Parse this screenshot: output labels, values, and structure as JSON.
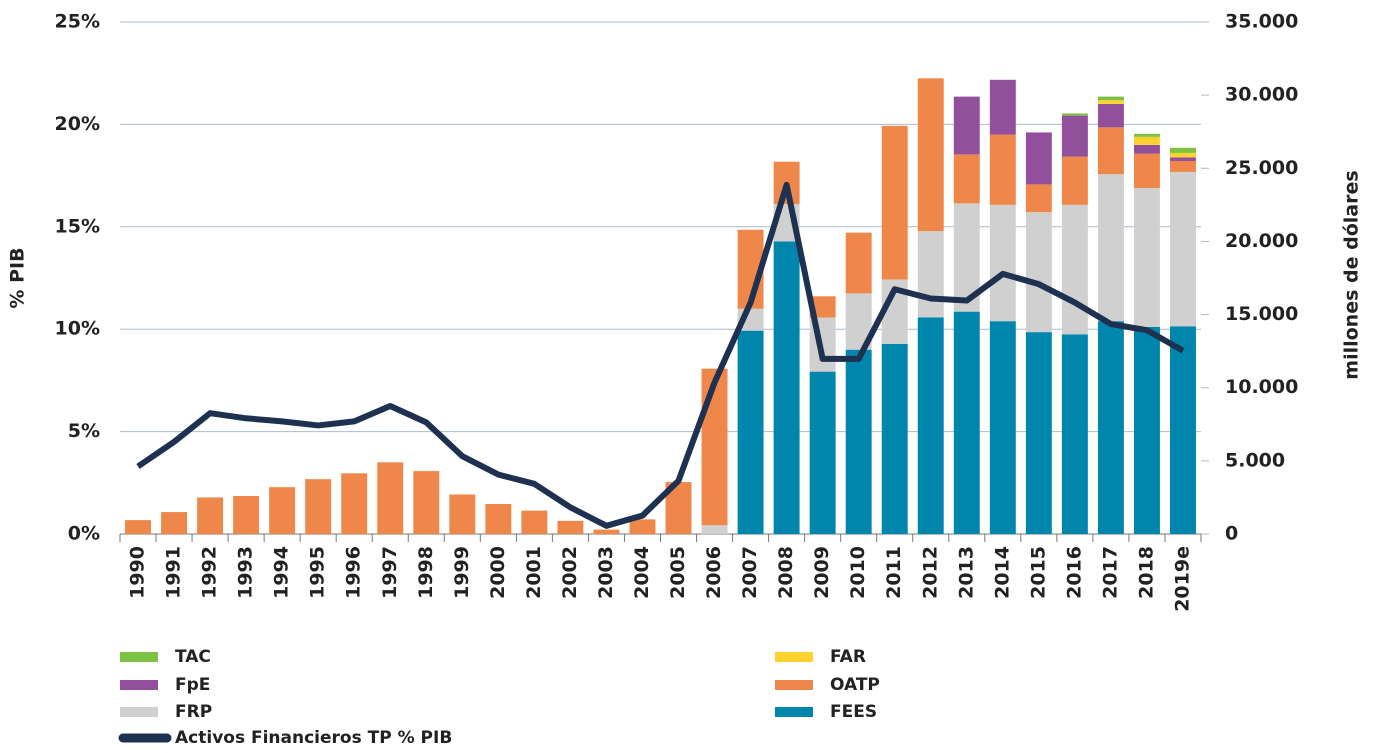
{
  "chart_data": {
    "type": "bar_line",
    "categories": [
      "1990",
      "1991",
      "1992",
      "1993",
      "1994",
      "1995",
      "1996",
      "1997",
      "1998",
      "1999",
      "2000",
      "2001",
      "2002",
      "2003",
      "2004",
      "2005",
      "2006",
      "2007",
      "2008",
      "2009",
      "2010",
      "2011",
      "2012",
      "2013",
      "2014",
      "2015",
      "2016",
      "2017",
      "2018",
      "2019e"
    ],
    "ylabel": "% PIB",
    "y2label": "millones de dólares",
    "ylim": [
      0,
      25
    ],
    "yticks": [
      {
        "value": 0,
        "label": "0%"
      },
      {
        "value": 5,
        "label": "5%"
      },
      {
        "value": 10,
        "label": "10%"
      },
      {
        "value": 15,
        "label": "15%"
      },
      {
        "value": 20,
        "label": "20%"
      },
      {
        "value": 25,
        "label": "25%"
      }
    ],
    "y2lim": [
      0,
      35000
    ],
    "y2ticks": [
      0,
      {
        "value": 5000,
        "label": "5.000"
      },
      {
        "value": 10000,
        "label": "10.000"
      },
      {
        "value": 15000,
        "label": "15.000"
      },
      {
        "value": 20000,
        "label": "20.000"
      },
      {
        "value": 25000,
        "label": "25.000"
      },
      {
        "value": 30000,
        "label": "30.000"
      },
      {
        "value": 35000,
        "label": "35.000"
      }
    ],
    "grid": true,
    "series": [
      {
        "name": "FEES",
        "color": "#0086ad",
        "axis": "y2",
        "kind": "bar",
        "values": [
          0,
          0,
          0,
          0,
          0,
          0,
          0,
          0,
          0,
          0,
          0,
          0,
          0,
          0,
          0,
          0,
          0,
          13900,
          20000,
          11100,
          12600,
          13000,
          14800,
          15200,
          14550,
          13800,
          13650,
          14550,
          14150,
          14200
        ]
      },
      {
        "name": "FRP",
        "color": "#d0d0d0",
        "axis": "y2",
        "kind": "bar",
        "values": [
          0,
          0,
          0,
          0,
          0,
          0,
          0,
          0,
          0,
          0,
          0,
          0,
          0,
          0,
          0,
          0,
          600,
          1500,
          2550,
          3700,
          3850,
          4400,
          5900,
          7400,
          7950,
          8200,
          8850,
          10050,
          9500,
          10550
        ]
      },
      {
        "name": "OATP",
        "color": "#f0874a",
        "axis": "y2",
        "kind": "bar",
        "values": [
          950,
          1500,
          2500,
          2600,
          3200,
          3750,
          4150,
          4900,
          4300,
          2700,
          2050,
          1600,
          900,
          300,
          1000,
          3550,
          10700,
          5400,
          2900,
          1450,
          4150,
          10500,
          10450,
          3350,
          4800,
          1900,
          3300,
          3200,
          2350,
          750
        ]
      },
      {
        "name": "FpE",
        "color": "#924f9c",
        "axis": "y2",
        "kind": "bar",
        "values": [
          0,
          0,
          0,
          0,
          0,
          0,
          0,
          0,
          0,
          0,
          0,
          0,
          0,
          0,
          0,
          0,
          0,
          0,
          0,
          0,
          0,
          0,
          0,
          3950,
          3750,
          3550,
          2800,
          1600,
          600,
          250
        ]
      },
      {
        "name": "FAR",
        "color": "#ffd230",
        "axis": "y2",
        "kind": "bar",
        "values": [
          0,
          0,
          0,
          0,
          0,
          0,
          0,
          0,
          0,
          0,
          0,
          0,
          0,
          0,
          0,
          0,
          0,
          0,
          0,
          0,
          0,
          0,
          0,
          0,
          0,
          0,
          0,
          250,
          550,
          300
        ]
      },
      {
        "name": "TAC",
        "color": "#7dc242",
        "axis": "y2",
        "kind": "bar",
        "values": [
          0,
          0,
          0,
          0,
          0,
          0,
          0,
          0,
          0,
          0,
          0,
          0,
          0,
          0,
          0,
          0,
          0,
          0,
          0,
          0,
          0,
          0,
          0,
          0,
          0,
          0,
          150,
          250,
          200,
          350
        ]
      },
      {
        "name": "Activos Financieros TP % PIB",
        "color": "#1e3150",
        "kind": "line",
        "values": [
          3.3,
          4.5,
          5.9,
          5.65,
          5.5,
          5.3,
          5.5,
          6.25,
          5.45,
          3.8,
          2.9,
          2.45,
          1.3,
          0.4,
          0.9,
          2.6,
          7.4,
          11.3,
          17.05,
          8.55,
          8.55,
          11.95,
          11.5,
          11.4,
          12.7,
          12.2,
          11.3,
          10.25,
          9.95,
          8.95
        ]
      }
    ]
  }
}
